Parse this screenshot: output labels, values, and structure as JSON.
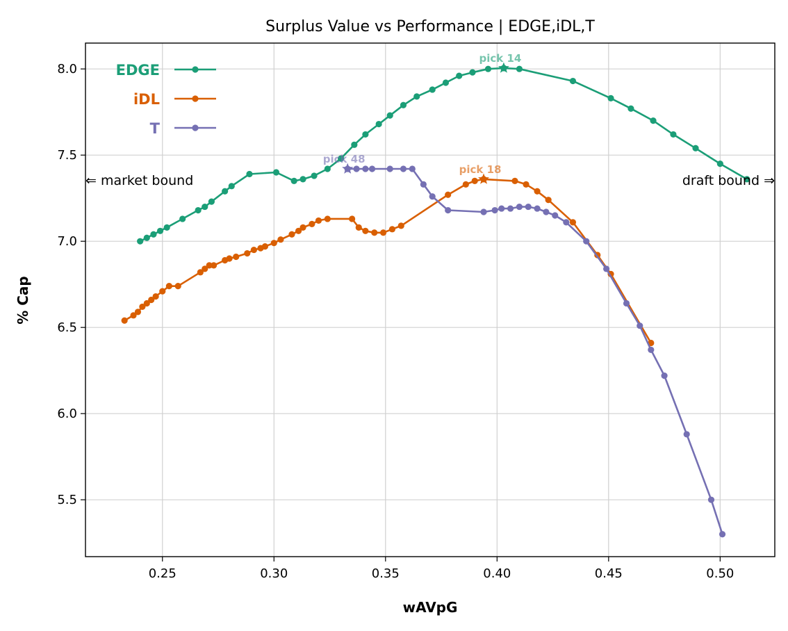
{
  "chart_data": {
    "type": "line",
    "title": "Surplus Value vs Performance | EDGE,iDL,T",
    "xlabel": "wAVpG",
    "ylabel": "% Cap",
    "xlim": [
      0.2155,
      0.5245
    ],
    "ylim": [
      5.17,
      8.15
    ],
    "xticks": [
      "0.25",
      "0.30",
      "0.35",
      "0.40",
      "0.45",
      "0.50"
    ],
    "yticks": [
      "5.5",
      "6.0",
      "6.5",
      "7.0",
      "7.5",
      "8.0"
    ],
    "grid": true,
    "legend_position": "top-left",
    "notes": {
      "left": "⇐ market bound",
      "right": "draft bound ⇒"
    },
    "series": [
      {
        "name": "EDGE",
        "color": "#1b9e77",
        "pick_label": "pick 14",
        "pick": [
          0.403,
          8.005
        ],
        "x": [
          0.24,
          0.243,
          0.246,
          0.249,
          0.252,
          0.259,
          0.266,
          0.269,
          0.272,
          0.278,
          0.281,
          0.289,
          0.301,
          0.309,
          0.313,
          0.318,
          0.324,
          0.33,
          0.336,
          0.341,
          0.347,
          0.352,
          0.358,
          0.364,
          0.371,
          0.377,
          0.383,
          0.389,
          0.396,
          0.403,
          0.41,
          0.434,
          0.451,
          0.46,
          0.47,
          0.479,
          0.489,
          0.5,
          0.512
        ],
        "y": [
          7.0,
          7.02,
          7.04,
          7.06,
          7.08,
          7.13,
          7.18,
          7.2,
          7.23,
          7.29,
          7.32,
          7.39,
          7.4,
          7.35,
          7.36,
          7.38,
          7.42,
          7.48,
          7.56,
          7.62,
          7.68,
          7.73,
          7.79,
          7.84,
          7.88,
          7.92,
          7.96,
          7.98,
          8.0,
          8.005,
          8.0,
          7.93,
          7.83,
          7.77,
          7.7,
          7.62,
          7.54,
          7.45,
          7.36
        ]
      },
      {
        "name": "iDL",
        "color": "#d95f02",
        "pick_label": "pick 18",
        "pick": [
          0.394,
          7.36
        ],
        "x": [
          0.233,
          0.237,
          0.239,
          0.241,
          0.243,
          0.245,
          0.247,
          0.25,
          0.253,
          0.257,
          0.267,
          0.269,
          0.271,
          0.273,
          0.278,
          0.28,
          0.283,
          0.288,
          0.291,
          0.294,
          0.296,
          0.3,
          0.303,
          0.308,
          0.311,
          0.313,
          0.317,
          0.32,
          0.324,
          0.335,
          0.338,
          0.341,
          0.345,
          0.349,
          0.353,
          0.357,
          0.378,
          0.386,
          0.39,
          0.394,
          0.408,
          0.413,
          0.418,
          0.423,
          0.434,
          0.445,
          0.451,
          0.469
        ],
        "y": [
          6.54,
          6.57,
          6.59,
          6.62,
          6.64,
          6.66,
          6.68,
          6.71,
          6.74,
          6.74,
          6.82,
          6.84,
          6.86,
          6.86,
          6.89,
          6.9,
          6.91,
          6.93,
          6.95,
          6.96,
          6.97,
          6.99,
          7.01,
          7.04,
          7.06,
          7.08,
          7.1,
          7.12,
          7.13,
          7.13,
          7.08,
          7.06,
          7.05,
          7.05,
          7.07,
          7.09,
          7.27,
          7.33,
          7.35,
          7.36,
          7.35,
          7.33,
          7.29,
          7.24,
          7.11,
          6.92,
          6.81,
          6.41
        ]
      },
      {
        "name": "T",
        "color": "#7570b3",
        "pick_label": "pick 48",
        "pick": [
          0.333,
          7.42
        ],
        "x": [
          0.333,
          0.337,
          0.341,
          0.344,
          0.352,
          0.358,
          0.362,
          0.367,
          0.371,
          0.378,
          0.394,
          0.399,
          0.402,
          0.406,
          0.41,
          0.414,
          0.418,
          0.422,
          0.426,
          0.431,
          0.44,
          0.449,
          0.458,
          0.464,
          0.469,
          0.475,
          0.485,
          0.496,
          0.501
        ],
        "y": [
          7.42,
          7.42,
          7.42,
          7.42,
          7.42,
          7.42,
          7.42,
          7.33,
          7.26,
          7.18,
          7.17,
          7.18,
          7.19,
          7.19,
          7.2,
          7.2,
          7.19,
          7.17,
          7.15,
          7.11,
          7.0,
          6.84,
          6.64,
          6.51,
          6.37,
          6.22,
          5.88,
          5.5,
          5.3
        ]
      }
    ]
  }
}
